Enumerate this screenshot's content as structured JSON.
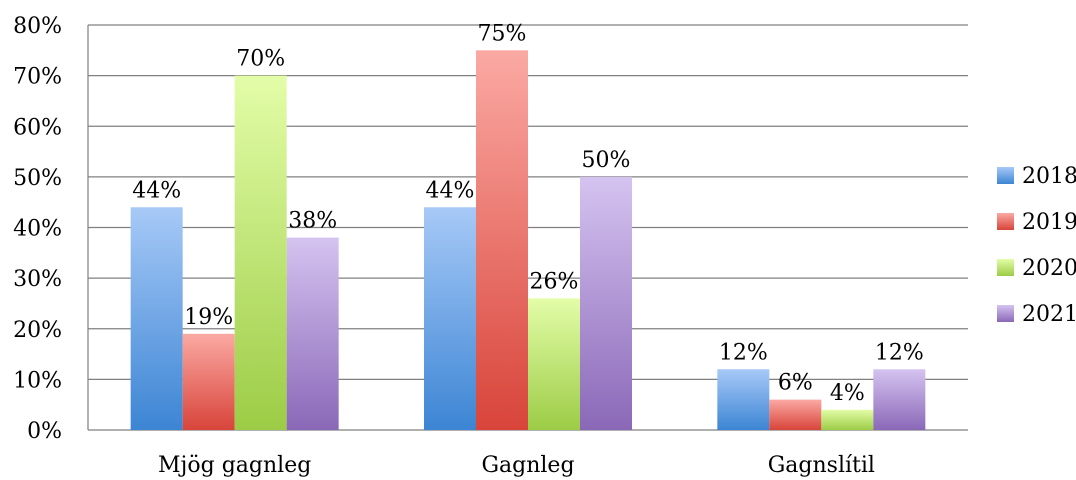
{
  "chart_data": {
    "type": "bar",
    "categories": [
      "Mjög gagnleg",
      "Gagnleg",
      "Gagnslítil"
    ],
    "series": [
      {
        "name": "2018",
        "values": [
          44,
          44,
          12
        ],
        "labels": [
          "44%",
          "44%",
          "12%"
        ],
        "color_top": "#a7c9f7",
        "color_bottom": "#3c85d4"
      },
      {
        "name": "2019",
        "values": [
          19,
          75,
          6
        ],
        "labels": [
          "19%",
          "75%",
          "6%"
        ],
        "color_top": "#fba9a3",
        "color_bottom": "#d8443a"
      },
      {
        "name": "2020",
        "values": [
          70,
          26,
          4
        ],
        "labels": [
          "70%",
          "26%",
          "4%"
        ],
        "color_top": "#e3fda8",
        "color_bottom": "#9ccc46"
      },
      {
        "name": "2021",
        "values": [
          38,
          50,
          12
        ],
        "labels": [
          "38%",
          "50%",
          "12%"
        ],
        "color_top": "#d5c3f0",
        "color_bottom": "#8a68b8"
      }
    ],
    "yticks": [
      "0%",
      "10%",
      "20%",
      "30%",
      "40%",
      "50%",
      "60%",
      "70%",
      "80%"
    ],
    "ylim": [
      0,
      80
    ],
    "grid": true,
    "legend_position": "right"
  }
}
